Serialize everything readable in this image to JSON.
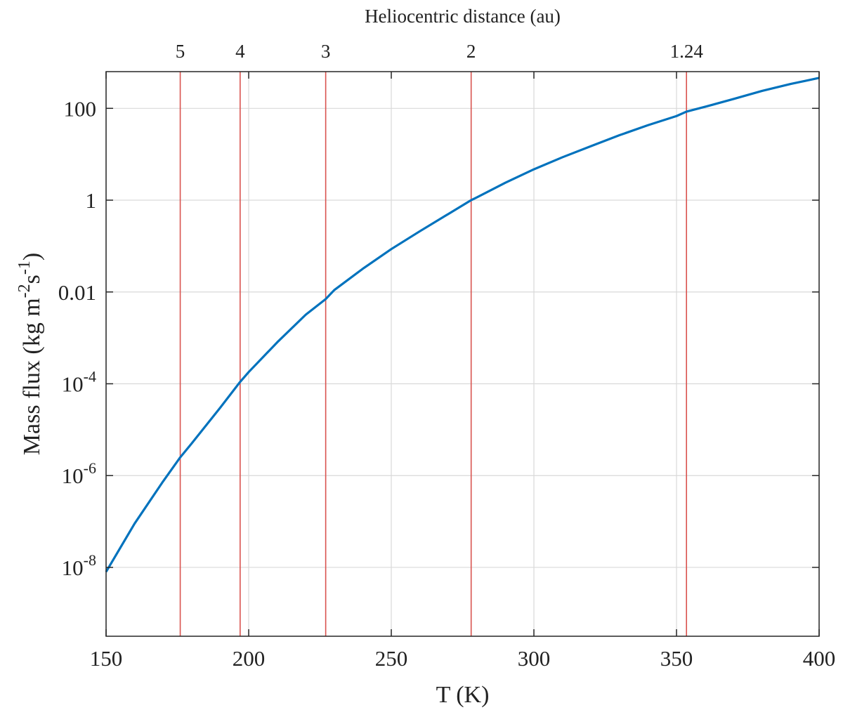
{
  "chart_data": {
    "type": "line",
    "xlabel": "T (K)",
    "ylabel": "Mass flux (kg m⁻²s⁻¹)",
    "ylabel_parts": {
      "base": "Mass flux (kg m",
      "sup1": "-2",
      "mid": "s",
      "sup2": "-1",
      "end": ")"
    },
    "top_axis_label": "Heliocentric distance (au)",
    "xlim": [
      150,
      400
    ],
    "ylim_log10": [
      -9.5,
      2.8
    ],
    "yscale": "log",
    "grid": true,
    "x_ticks": [
      {
        "value": 150,
        "label": "150"
      },
      {
        "value": 200,
        "label": "200"
      },
      {
        "value": 250,
        "label": "250"
      },
      {
        "value": 300,
        "label": "300"
      },
      {
        "value": 350,
        "label": "350"
      },
      {
        "value": 400,
        "label": "400"
      }
    ],
    "y_ticks": [
      {
        "value": 100,
        "base": "100",
        "exp": ""
      },
      {
        "value": 1,
        "base": "1",
        "exp": ""
      },
      {
        "value": 0.01,
        "base": "0.01",
        "exp": ""
      },
      {
        "value": 0.0001,
        "base": "10",
        "exp": "-4"
      },
      {
        "value": 1e-06,
        "base": "10",
        "exp": "-6"
      },
      {
        "value": 1e-08,
        "base": "10",
        "exp": "-8"
      }
    ],
    "vertical_lines": [
      {
        "x": 176,
        "label": "5",
        "color": "#d9534f"
      },
      {
        "x": 197,
        "label": "4",
        "color": "#d9534f"
      },
      {
        "x": 227,
        "label": "3",
        "color": "#d9534f"
      },
      {
        "x": 278,
        "label": "2",
        "color": "#d9534f"
      },
      {
        "x": 353.5,
        "label": "1.24",
        "color": "#d9534f"
      }
    ],
    "series": [
      {
        "color": "#0072bd",
        "x": [
          150,
          160,
          170,
          176,
          180,
          190,
          197,
          200,
          210,
          220,
          227,
          230,
          240,
          250,
          260,
          270,
          278,
          280,
          290,
          300,
          310,
          320,
          330,
          340,
          350,
          353.5,
          360,
          370,
          380,
          390,
          400
        ],
        "y": [
          8e-09,
          9e-08,
          7.5e-07,
          2.5e-06,
          5e-06,
          3e-05,
          0.00011,
          0.00018,
          0.0008,
          0.0032,
          0.007,
          0.011,
          0.032,
          0.086,
          0.21,
          0.5,
          1.0,
          1.15,
          2.4,
          4.7,
          8.6,
          15,
          26,
          43,
          68,
          85,
          108,
          160,
          240,
          340,
          460
        ]
      }
    ]
  }
}
